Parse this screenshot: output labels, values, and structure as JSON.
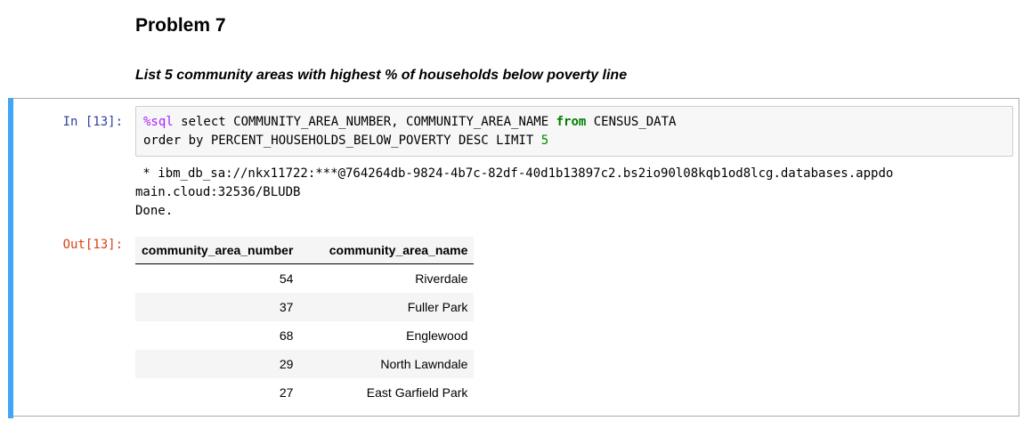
{
  "markdown": {
    "heading": "Problem 7",
    "subheading": "List 5 community areas with highest % of households below poverty line"
  },
  "cell": {
    "in_prompt": "In [13]:",
    "out_prompt": "Out[13]:",
    "code": {
      "line1_magic": "%sql",
      "line1_part1": " select COMMUNITY_AREA_NUMBER, COMMUNITY_AREA_NAME ",
      "line1_keyword": "from",
      "line1_part2": " CENSUS_DATA",
      "line2_part1": "order by PERCENT_HOUSEHOLDS_BELOW_POVERTY DESC LIMIT ",
      "line2_number": "5"
    },
    "stream": {
      "line1": " * ibm_db_sa://nkx11722:***@764264db-9824-4b7c-82df-40d1b13897c2.bs2io90l08kqb1od8lcg.databases.appdo",
      "line2": "main.cloud:32536/BLUDB",
      "line3": "Done."
    },
    "table": {
      "headers": [
        "community_area_number",
        "community_area_name"
      ],
      "rows": [
        [
          "54",
          "Riverdale"
        ],
        [
          "37",
          "Fuller Park"
        ],
        [
          "68",
          "Englewood"
        ],
        [
          "29",
          "North Lawndale"
        ],
        [
          "27",
          "East Garfield Park"
        ]
      ]
    }
  }
}
